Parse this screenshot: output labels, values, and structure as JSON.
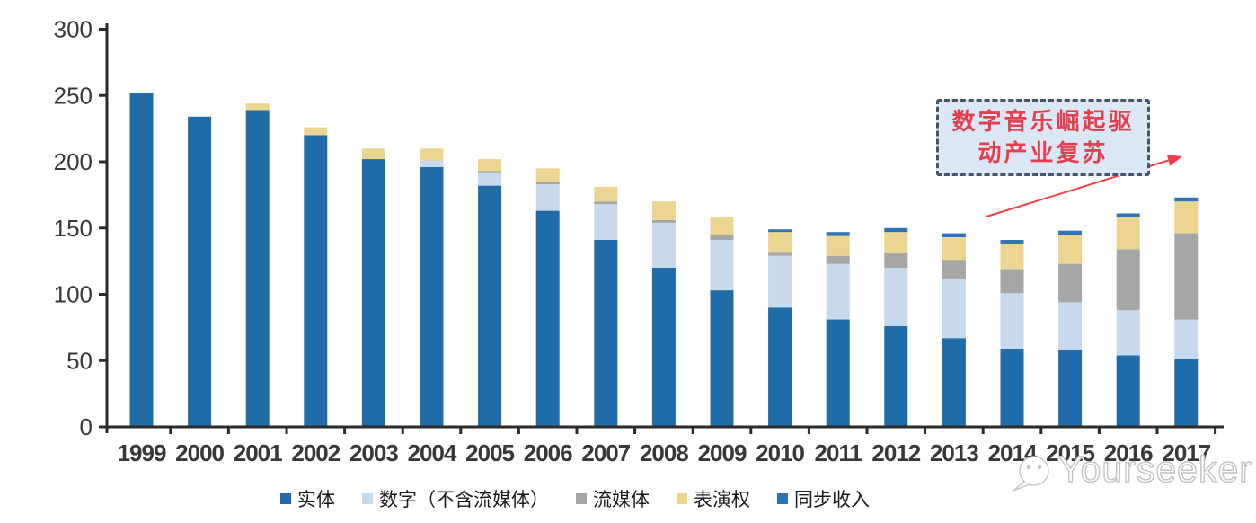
{
  "chart_data": {
    "type": "bar",
    "stacked": true,
    "title": "",
    "xlabel": "",
    "ylabel": "",
    "categories": [
      "1999",
      "2000",
      "2001",
      "2002",
      "2003",
      "2004",
      "2005",
      "2006",
      "2007",
      "2008",
      "2009",
      "2010",
      "2011",
      "2012",
      "2013",
      "2014",
      "2015",
      "2016",
      "2017"
    ],
    "series": [
      {
        "name": "实体",
        "color": "#1F6CA8",
        "values": [
          252,
          234,
          239,
          220,
          202,
          196,
          182,
          163,
          141,
          120,
          103,
          90,
          81,
          76,
          67,
          59,
          58,
          54,
          51
        ]
      },
      {
        "name": "数字（不含流媒体）",
        "color": "#C8D9EE",
        "values": [
          0,
          0,
          0,
          0,
          0,
          5,
          10,
          20,
          27,
          34,
          38,
          39,
          42,
          44,
          44,
          42,
          36,
          34,
          30
        ]
      },
      {
        "name": "流媒体",
        "color": "#A6A6A6",
        "values": [
          0,
          0,
          0,
          0,
          0,
          0,
          1,
          2,
          2,
          2,
          4,
          3,
          6,
          11,
          15,
          18,
          29,
          46,
          65
        ]
      },
      {
        "name": "表演权",
        "color": "#EBD590",
        "values": [
          0,
          0,
          5,
          6,
          8,
          9,
          9,
          10,
          11,
          14,
          13,
          15,
          15,
          16,
          17,
          19,
          22,
          24,
          24
        ]
      },
      {
        "name": "同步收入",
        "color": "#2E75B6",
        "values": [
          0,
          0,
          0,
          0,
          0,
          0,
          0,
          0,
          0,
          0,
          0,
          2,
          3,
          3,
          3,
          3,
          3,
          3,
          3
        ]
      }
    ],
    "totals": [
      252,
      234,
      244,
      226,
      210,
      210,
      202,
      195,
      181,
      170,
      158,
      149,
      147,
      150,
      146,
      141,
      148,
      161,
      173
    ],
    "ylim": [
      0,
      300
    ],
    "yticks": [
      0,
      50,
      100,
      150,
      200,
      250,
      300
    ],
    "grid": false,
    "legend_position": "bottom"
  },
  "annotation": {
    "line1": "数字音乐崛起驱",
    "line2": "动产业复苏",
    "text_color": "#E2404F",
    "box_fill": "#DBE7F4",
    "box_border": "#44546A",
    "arrow_color": "#EE3F49"
  },
  "watermark": {
    "text": "Yourseeker",
    "logo": "chat-bubble-face-icon",
    "color": "#C3C3C3"
  },
  "axis": {
    "line_color": "#2B2B2B",
    "label_color": "#383838"
  }
}
